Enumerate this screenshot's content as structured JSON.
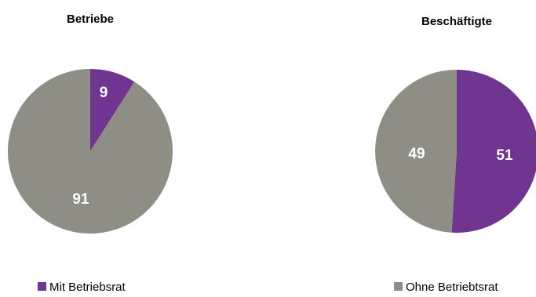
{
  "chart_data": [
    {
      "type": "pie",
      "title": "Betriebe",
      "categories": [
        "Mit Betriebsrat",
        "Ohne Betriebtsrat"
      ],
      "values": [
        9,
        91
      ],
      "start_angle_deg": 0,
      "direction": "clockwise"
    },
    {
      "type": "pie",
      "title": "Beschäftigte",
      "categories": [
        "Mit Betriebsrat",
        "Ohne Betriebtsrat"
      ],
      "values": [
        51,
        49
      ],
      "start_angle_deg": 0,
      "direction": "clockwise"
    }
  ],
  "legend": {
    "placement": "bottom",
    "items": [
      {
        "label": "Mit Betriebsrat",
        "color": "#6f3590"
      },
      {
        "label": "Ohne Betriebtsrat",
        "color": "#8e8e84"
      }
    ]
  },
  "colors": {
    "mit": "#6f3590",
    "ohne": "#8e8e84"
  }
}
